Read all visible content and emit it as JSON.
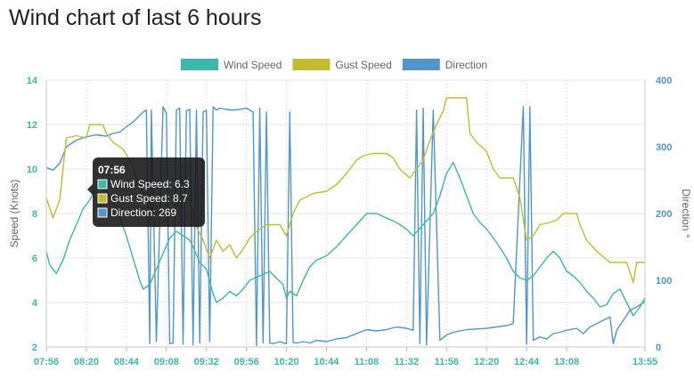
{
  "page": {
    "title": "Wind chart of last 6 hours"
  },
  "legend": [
    {
      "label": "Wind Speed",
      "color": "#3cb8aa"
    },
    {
      "label": "Gust Speed",
      "color": "#c2bd2e"
    },
    {
      "label": "Direction",
      "color": "#5096cc"
    }
  ],
  "tooltip": {
    "time": "07:56",
    "lines": [
      {
        "text": "Wind Speed: 6.3",
        "color": "#3cb8aa"
      },
      {
        "text": "Gust Speed: 8.7",
        "color": "#c2bd2e"
      },
      {
        "text": "Direction: 269",
        "color": "#5096cc"
      }
    ]
  },
  "chart_data": {
    "type": "line",
    "title": "",
    "xlabel": "",
    "x_tick_labels": [
      "07:56",
      "08:20",
      "08:44",
      "09:08",
      "09:32",
      "09:56",
      "10:20",
      "10:44",
      "11:08",
      "11:32",
      "11:56",
      "12:20",
      "12:44",
      "13:08",
      "13:55"
    ],
    "x_tick_minutes": [
      0,
      24,
      48,
      72,
      96,
      120,
      144,
      168,
      192,
      216,
      240,
      264,
      288,
      312,
      359
    ],
    "x_range_minutes": [
      0,
      359
    ],
    "grid": true,
    "legend_position": "top-center",
    "y_left": {
      "label": "Speed (Knots)",
      "range": [
        2,
        14
      ],
      "ticks": [
        2,
        4,
        6,
        8,
        10,
        12,
        14
      ]
    },
    "y_right": {
      "label": "Direction °",
      "range": [
        0,
        400
      ],
      "ticks": [
        0,
        100,
        200,
        300,
        400
      ]
    },
    "series": [
      {
        "name": "Wind Speed",
        "axis": "left",
        "color": "#3cb8aa",
        "points": [
          [
            0,
            6.3
          ],
          [
            2,
            5.7
          ],
          [
            6,
            5.3
          ],
          [
            10,
            5.9
          ],
          [
            14,
            6.8
          ],
          [
            18,
            7.5
          ],
          [
            22,
            8.2
          ],
          [
            26,
            8.6
          ],
          [
            28,
            8.9
          ],
          [
            32,
            9.2
          ],
          [
            36,
            9.0
          ],
          [
            40,
            8.5
          ],
          [
            44,
            7.8
          ],
          [
            48,
            7.0
          ],
          [
            52,
            6.0
          ],
          [
            56,
            5.0
          ],
          [
            58,
            4.6
          ],
          [
            62,
            4.8
          ],
          [
            66,
            5.5
          ],
          [
            70,
            6.2
          ],
          [
            74,
            6.9
          ],
          [
            78,
            7.2
          ],
          [
            82,
            7.0
          ],
          [
            86,
            6.8
          ],
          [
            88,
            6.5
          ],
          [
            92,
            5.8
          ],
          [
            96,
            5.5
          ],
          [
            100,
            4.4
          ],
          [
            102,
            4.0
          ],
          [
            106,
            4.2
          ],
          [
            110,
            4.5
          ],
          [
            114,
            4.3
          ],
          [
            118,
            4.6
          ],
          [
            122,
            5.0
          ],
          [
            128,
            5.2
          ],
          [
            134,
            5.4
          ],
          [
            138,
            5.1
          ],
          [
            142,
            4.8
          ],
          [
            144,
            4.2
          ],
          [
            146,
            4.5
          ],
          [
            150,
            4.3
          ],
          [
            154,
            5.0
          ],
          [
            158,
            5.6
          ],
          [
            162,
            5.9
          ],
          [
            168,
            6.1
          ],
          [
            174,
            6.5
          ],
          [
            180,
            7.0
          ],
          [
            186,
            7.5
          ],
          [
            192,
            8.0
          ],
          [
            198,
            8.0
          ],
          [
            204,
            7.8
          ],
          [
            210,
            7.6
          ],
          [
            216,
            7.3
          ],
          [
            220,
            7.0
          ],
          [
            226,
            7.5
          ],
          [
            232,
            8.0
          ],
          [
            236,
            8.8
          ],
          [
            240,
            9.8
          ],
          [
            244,
            10.3
          ],
          [
            248,
            9.6
          ],
          [
            252,
            8.8
          ],
          [
            256,
            8.0
          ],
          [
            260,
            7.6
          ],
          [
            264,
            7.3
          ],
          [
            270,
            6.7
          ],
          [
            276,
            6.0
          ],
          [
            280,
            5.4
          ],
          [
            284,
            5.1
          ],
          [
            288,
            5.0
          ],
          [
            292,
            5.2
          ],
          [
            296,
            5.6
          ],
          [
            300,
            6.0
          ],
          [
            304,
            6.3
          ],
          [
            308,
            6.0
          ],
          [
            312,
            5.4
          ],
          [
            316,
            5.2
          ],
          [
            320,
            4.9
          ],
          [
            324,
            4.5
          ],
          [
            328,
            4.2
          ],
          [
            332,
            3.8
          ],
          [
            336,
            3.9
          ],
          [
            340,
            4.4
          ],
          [
            344,
            4.6
          ],
          [
            348,
            4.0
          ],
          [
            352,
            3.4
          ],
          [
            356,
            3.8
          ],
          [
            359,
            4.2
          ]
        ]
      },
      {
        "name": "Gust Speed",
        "axis": "left",
        "color": "#c2bd2e",
        "points": [
          [
            0,
            8.7
          ],
          [
            4,
            7.8
          ],
          [
            8,
            8.6
          ],
          [
            12,
            11.4
          ],
          [
            18,
            11.5
          ],
          [
            24,
            11.4
          ],
          [
            26,
            12.0
          ],
          [
            34,
            12.0
          ],
          [
            36,
            11.6
          ],
          [
            40,
            11.2
          ],
          [
            46,
            10.9
          ],
          [
            50,
            10.4
          ],
          [
            54,
            9.6
          ],
          [
            58,
            8.9
          ],
          [
            62,
            8.6
          ],
          [
            66,
            7.4
          ],
          [
            70,
            7.6
          ],
          [
            74,
            7.9
          ],
          [
            78,
            8.4
          ],
          [
            82,
            8.8
          ],
          [
            86,
            8.6
          ],
          [
            90,
            7.4
          ],
          [
            94,
            6.8
          ],
          [
            98,
            6.0
          ],
          [
            102,
            6.8
          ],
          [
            106,
            6.3
          ],
          [
            110,
            6.6
          ],
          [
            114,
            6.0
          ],
          [
            118,
            6.4
          ],
          [
            122,
            6.9
          ],
          [
            126,
            7.2
          ],
          [
            132,
            7.5
          ],
          [
            140,
            7.5
          ],
          [
            144,
            7.0
          ],
          [
            148,
            8.0
          ],
          [
            152,
            8.6
          ],
          [
            160,
            8.9
          ],
          [
            168,
            9.0
          ],
          [
            174,
            9.3
          ],
          [
            180,
            9.8
          ],
          [
            186,
            10.4
          ],
          [
            190,
            10.6
          ],
          [
            196,
            10.7
          ],
          [
            204,
            10.7
          ],
          [
            208,
            10.5
          ],
          [
            212,
            10.0
          ],
          [
            218,
            9.6
          ],
          [
            222,
            10.0
          ],
          [
            226,
            10.4
          ],
          [
            230,
            11.3
          ],
          [
            234,
            12.0
          ],
          [
            238,
            12.6
          ],
          [
            240,
            13.2
          ],
          [
            252,
            13.2
          ],
          [
            254,
            11.6
          ],
          [
            258,
            11.2
          ],
          [
            264,
            10.8
          ],
          [
            268,
            10.0
          ],
          [
            272,
            9.6
          ],
          [
            280,
            9.6
          ],
          [
            284,
            8.7
          ],
          [
            288,
            6.8
          ],
          [
            292,
            7.0
          ],
          [
            296,
            7.5
          ],
          [
            302,
            7.6
          ],
          [
            306,
            7.7
          ],
          [
            310,
            8.0
          ],
          [
            318,
            8.0
          ],
          [
            320,
            7.5
          ],
          [
            324,
            6.8
          ],
          [
            330,
            6.3
          ],
          [
            338,
            5.8
          ],
          [
            348,
            5.8
          ],
          [
            352,
            4.9
          ],
          [
            354,
            5.8
          ],
          [
            359,
            5.8
          ]
        ]
      },
      {
        "name": "Direction",
        "axis": "right",
        "color": "#5096cc",
        "points": [
          [
            0,
            269
          ],
          [
            4,
            265
          ],
          [
            8,
            275
          ],
          [
            12,
            300
          ],
          [
            18,
            310
          ],
          [
            24,
            315
          ],
          [
            30,
            318
          ],
          [
            36,
            316
          ],
          [
            40,
            320
          ],
          [
            44,
            322
          ],
          [
            48,
            330
          ],
          [
            52,
            337
          ],
          [
            58,
            352
          ],
          [
            60,
            355
          ],
          [
            62,
            5
          ],
          [
            63,
            355
          ],
          [
            66,
            8
          ],
          [
            70,
            360
          ],
          [
            72,
            350
          ],
          [
            74,
            5
          ],
          [
            76,
            6
          ],
          [
            78,
            355
          ],
          [
            80,
            358
          ],
          [
            82,
            4
          ],
          [
            84,
            354
          ],
          [
            86,
            356
          ],
          [
            88,
            3
          ],
          [
            90,
            355
          ],
          [
            92,
            6
          ],
          [
            94,
            352
          ],
          [
            96,
            355
          ],
          [
            98,
            8
          ],
          [
            100,
            360
          ],
          [
            102,
            355
          ],
          [
            104,
            358
          ],
          [
            108,
            356
          ],
          [
            112,
            355
          ],
          [
            116,
            356
          ],
          [
            120,
            358
          ],
          [
            124,
            352
          ],
          [
            126,
            2
          ],
          [
            128,
            358
          ],
          [
            130,
            6
          ],
          [
            132,
            352
          ],
          [
            134,
            6
          ],
          [
            136,
            5
          ],
          [
            140,
            8
          ],
          [
            144,
            5
          ],
          [
            146,
            352
          ],
          [
            148,
            7
          ],
          [
            150,
            6
          ],
          [
            154,
            8
          ],
          [
            158,
            6
          ],
          [
            162,
            10
          ],
          [
            168,
            8
          ],
          [
            174,
            12
          ],
          [
            180,
            14
          ],
          [
            186,
            20
          ],
          [
            192,
            26
          ],
          [
            198,
            24
          ],
          [
            204,
            26
          ],
          [
            210,
            30
          ],
          [
            216,
            28
          ],
          [
            220,
            25
          ],
          [
            222,
            355
          ],
          [
            224,
            5
          ],
          [
            226,
            358
          ],
          [
            228,
            3
          ],
          [
            232,
            355
          ],
          [
            236,
            10
          ],
          [
            240,
            18
          ],
          [
            244,
            22
          ],
          [
            248,
            24
          ],
          [
            252,
            26
          ],
          [
            258,
            27
          ],
          [
            264,
            28
          ],
          [
            270,
            30
          ],
          [
            276,
            32
          ],
          [
            280,
            35
          ],
          [
            286,
            360
          ],
          [
            288,
            4
          ],
          [
            290,
            360
          ],
          [
            292,
            10
          ],
          [
            296,
            15
          ],
          [
            300,
            12
          ],
          [
            304,
            20
          ],
          [
            308,
            22
          ],
          [
            312,
            25
          ],
          [
            318,
            28
          ],
          [
            322,
            20
          ],
          [
            326,
            30
          ],
          [
            330,
            35
          ],
          [
            334,
            40
          ],
          [
            338,
            45
          ],
          [
            340,
            5
          ],
          [
            342,
            25
          ],
          [
            346,
            40
          ],
          [
            350,
            55
          ],
          [
            354,
            60
          ],
          [
            359,
            68
          ]
        ]
      }
    ]
  }
}
